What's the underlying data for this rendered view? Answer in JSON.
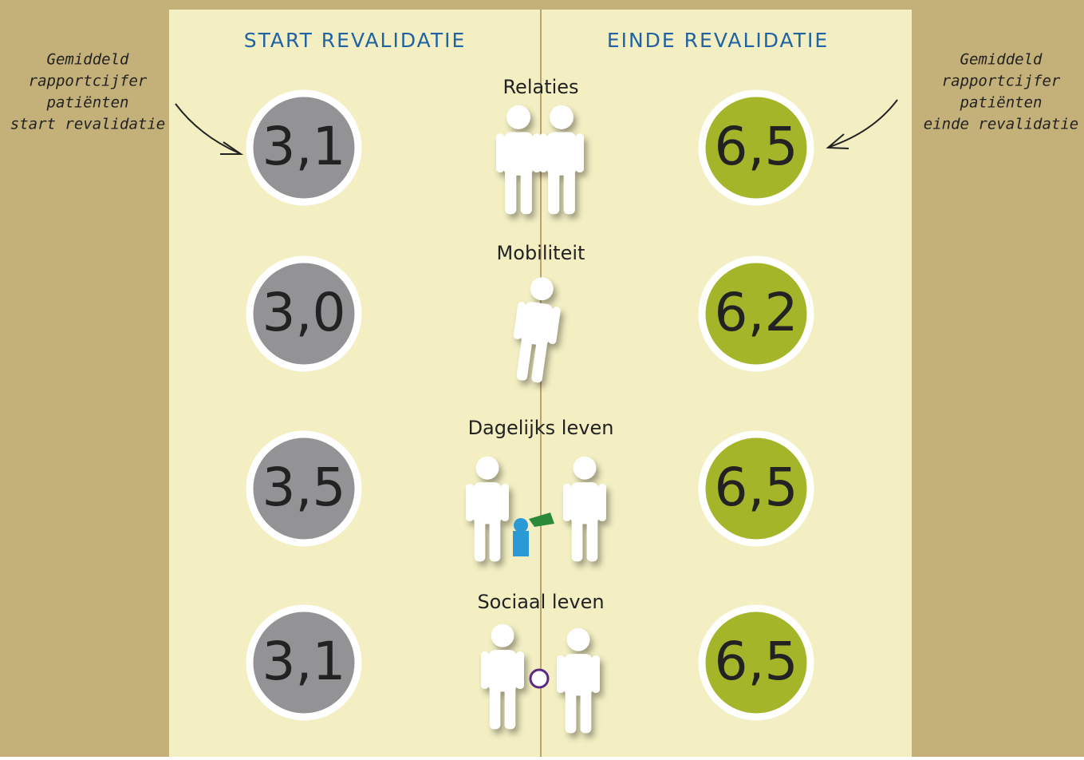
{
  "headers": {
    "start": "START REVALIDATIE",
    "end": "EINDE REVALIDATIE"
  },
  "annotations": {
    "start": [
      "Gemiddeld",
      "rapportcijfer",
      "patiënten",
      "start revalidatie"
    ],
    "end": [
      "Gemiddeld",
      "rapportcijfer",
      "patiënten",
      "einde revalidatie"
    ]
  },
  "rows": [
    {
      "label": "Relaties",
      "start": "3,1",
      "end": "6,5"
    },
    {
      "label": "Mobiliteit",
      "start": "3,0",
      "end": "6,2"
    },
    {
      "label": "Dagelijks leven",
      "start": "3,5",
      "end": "6,5"
    },
    {
      "label": "Sociaal leven",
      "start": "3,1",
      "end": "6,5"
    }
  ]
}
